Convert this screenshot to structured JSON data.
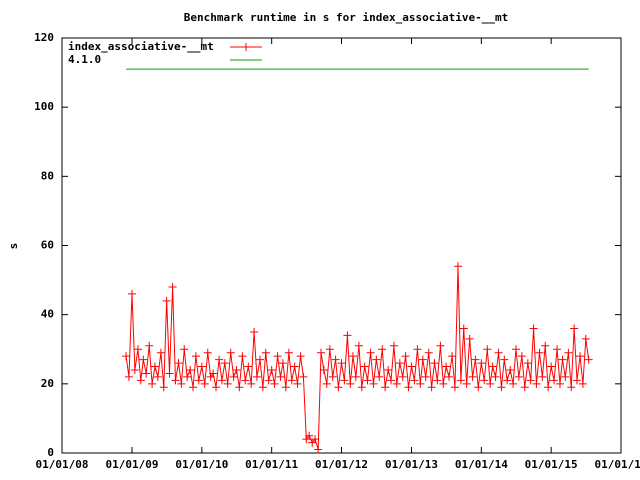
{
  "chart_data": {
    "type": "line",
    "title": "Benchmark runtime in s for index_associative-__mt",
    "y_label": "s",
    "xlim": [
      "2008-01-01",
      "2016-01-01"
    ],
    "xticks": [
      {
        "value": "2008-01-01",
        "label": "01/01/08"
      },
      {
        "value": "2009-01-01",
        "label": "01/01/09"
      },
      {
        "value": "2010-01-01",
        "label": "01/01/10"
      },
      {
        "value": "2011-01-01",
        "label": "01/01/11"
      },
      {
        "value": "2012-01-01",
        "label": "01/01/12"
      },
      {
        "value": "2013-01-01",
        "label": "01/01/13"
      },
      {
        "value": "2014-01-01",
        "label": "01/01/14"
      },
      {
        "value": "2015-01-01",
        "label": "01/01/15"
      },
      {
        "value": "2016-01-01",
        "label": "01/01/16"
      }
    ],
    "ylim": [
      0,
      120
    ],
    "yticks": [
      0,
      20,
      40,
      60,
      80,
      100,
      120
    ],
    "grid": false,
    "legend": "top-left",
    "series": [
      {
        "name": "index_associative-__mt",
        "color": "#ff0000",
        "marker": "plus",
        "x": [
          "2008-12-01",
          "2008-12-16",
          "2009-01-01",
          "2009-01-16",
          "2009-02-01",
          "2009-02-16",
          "2009-03-01",
          "2009-03-16",
          "2009-04-01",
          "2009-04-16",
          "2009-05-01",
          "2009-05-16",
          "2009-06-01",
          "2009-06-16",
          "2009-07-01",
          "2009-07-16",
          "2009-08-01",
          "2009-08-16",
          "2009-09-01",
          "2009-09-16",
          "2009-10-01",
          "2009-10-16",
          "2009-11-01",
          "2009-11-16",
          "2009-12-01",
          "2009-12-16",
          "2010-01-01",
          "2010-01-16",
          "2010-02-01",
          "2010-02-16",
          "2010-03-01",
          "2010-03-16",
          "2010-04-01",
          "2010-04-16",
          "2010-05-01",
          "2010-05-16",
          "2010-06-01",
          "2010-06-16",
          "2010-07-01",
          "2010-07-16",
          "2010-08-01",
          "2010-08-16",
          "2010-09-01",
          "2010-09-16",
          "2010-10-01",
          "2010-10-16",
          "2010-11-01",
          "2010-11-16",
          "2010-12-01",
          "2010-12-16",
          "2011-01-01",
          "2011-01-16",
          "2011-02-01",
          "2011-02-16",
          "2011-03-01",
          "2011-03-16",
          "2011-04-01",
          "2011-04-16",
          "2011-05-01",
          "2011-05-16",
          "2011-06-01",
          "2011-06-16",
          "2011-07-01",
          "2011-07-16",
          "2011-08-01",
          "2011-08-16",
          "2011-09-01",
          "2011-09-16",
          "2011-10-01",
          "2011-10-16",
          "2011-11-01",
          "2011-11-16",
          "2011-12-01",
          "2011-12-16",
          "2012-01-01",
          "2012-01-16",
          "2012-02-01",
          "2012-02-16",
          "2012-03-01",
          "2012-03-16",
          "2012-04-01",
          "2012-04-16",
          "2012-05-01",
          "2012-05-16",
          "2012-06-01",
          "2012-06-16",
          "2012-07-01",
          "2012-07-16",
          "2012-08-01",
          "2012-08-16",
          "2012-09-01",
          "2012-09-16",
          "2012-10-01",
          "2012-10-16",
          "2012-11-01",
          "2012-11-16",
          "2012-12-01",
          "2012-12-16",
          "2013-01-01",
          "2013-01-16",
          "2013-02-01",
          "2013-02-16",
          "2013-03-01",
          "2013-03-16",
          "2013-04-01",
          "2013-04-16",
          "2013-05-01",
          "2013-05-16",
          "2013-06-01",
          "2013-06-16",
          "2013-07-01",
          "2013-07-16",
          "2013-08-01",
          "2013-08-16",
          "2013-09-01",
          "2013-09-16",
          "2013-10-01",
          "2013-10-16",
          "2013-11-01",
          "2013-11-16",
          "2013-12-01",
          "2013-12-16",
          "2014-01-01",
          "2014-01-16",
          "2014-02-01",
          "2014-02-16",
          "2014-03-01",
          "2014-03-16",
          "2014-04-01",
          "2014-04-16",
          "2014-05-01",
          "2014-05-16",
          "2014-06-01",
          "2014-06-16",
          "2014-07-01",
          "2014-07-16",
          "2014-08-01",
          "2014-08-16",
          "2014-09-01",
          "2014-09-16",
          "2014-10-01",
          "2014-10-16",
          "2014-11-01",
          "2014-11-16",
          "2014-12-01",
          "2014-12-16",
          "2015-01-01",
          "2015-01-16",
          "2015-02-01",
          "2015-02-16",
          "2015-03-01",
          "2015-03-16",
          "2015-04-01",
          "2015-04-16",
          "2015-05-01",
          "2015-05-16",
          "2015-06-01",
          "2015-06-16",
          "2015-07-01",
          "2015-07-16"
        ],
        "values": [
          28,
          22,
          46,
          24,
          30,
          21,
          27,
          23,
          31,
          20,
          25,
          22,
          29,
          19,
          44,
          23,
          48,
          21,
          26,
          20,
          30,
          22,
          24,
          19,
          28,
          21,
          25,
          20,
          29,
          22,
          23,
          19,
          27,
          21,
          26,
          20,
          29,
          22,
          24,
          19,
          28,
          21,
          25,
          20,
          35,
          22,
          27,
          19,
          29,
          21,
          24,
          20,
          28,
          22,
          26,
          19,
          29,
          21,
          25,
          20,
          28,
          22,
          4,
          5,
          3,
          4,
          1,
          29,
          24,
          20,
          30,
          22,
          27,
          19,
          26,
          21,
          34,
          20,
          28,
          22,
          31,
          19,
          25,
          21,
          29,
          20,
          27,
          22,
          30,
          19,
          24,
          21,
          31,
          20,
          26,
          22,
          28,
          19,
          25,
          21,
          30,
          20,
          27,
          22,
          29,
          19,
          26,
          21,
          31,
          20,
          25,
          22,
          28,
          19,
          54,
          21,
          36,
          20,
          33,
          22,
          27,
          19,
          26,
          21,
          30,
          20,
          25,
          22,
          29,
          19,
          27,
          21,
          24,
          20,
          30,
          22,
          28,
          19,
          26,
          21,
          36,
          20,
          29,
          22,
          31,
          19,
          25,
          21,
          30,
          20,
          27,
          22,
          29,
          19,
          36,
          21,
          28,
          20,
          33,
          27
        ]
      },
      {
        "name": "4.1.0",
        "color": "#00a000",
        "marker": "none",
        "x": [
          "2008-12-01",
          "2015-07-16"
        ],
        "values": [
          111,
          111
        ]
      }
    ]
  }
}
